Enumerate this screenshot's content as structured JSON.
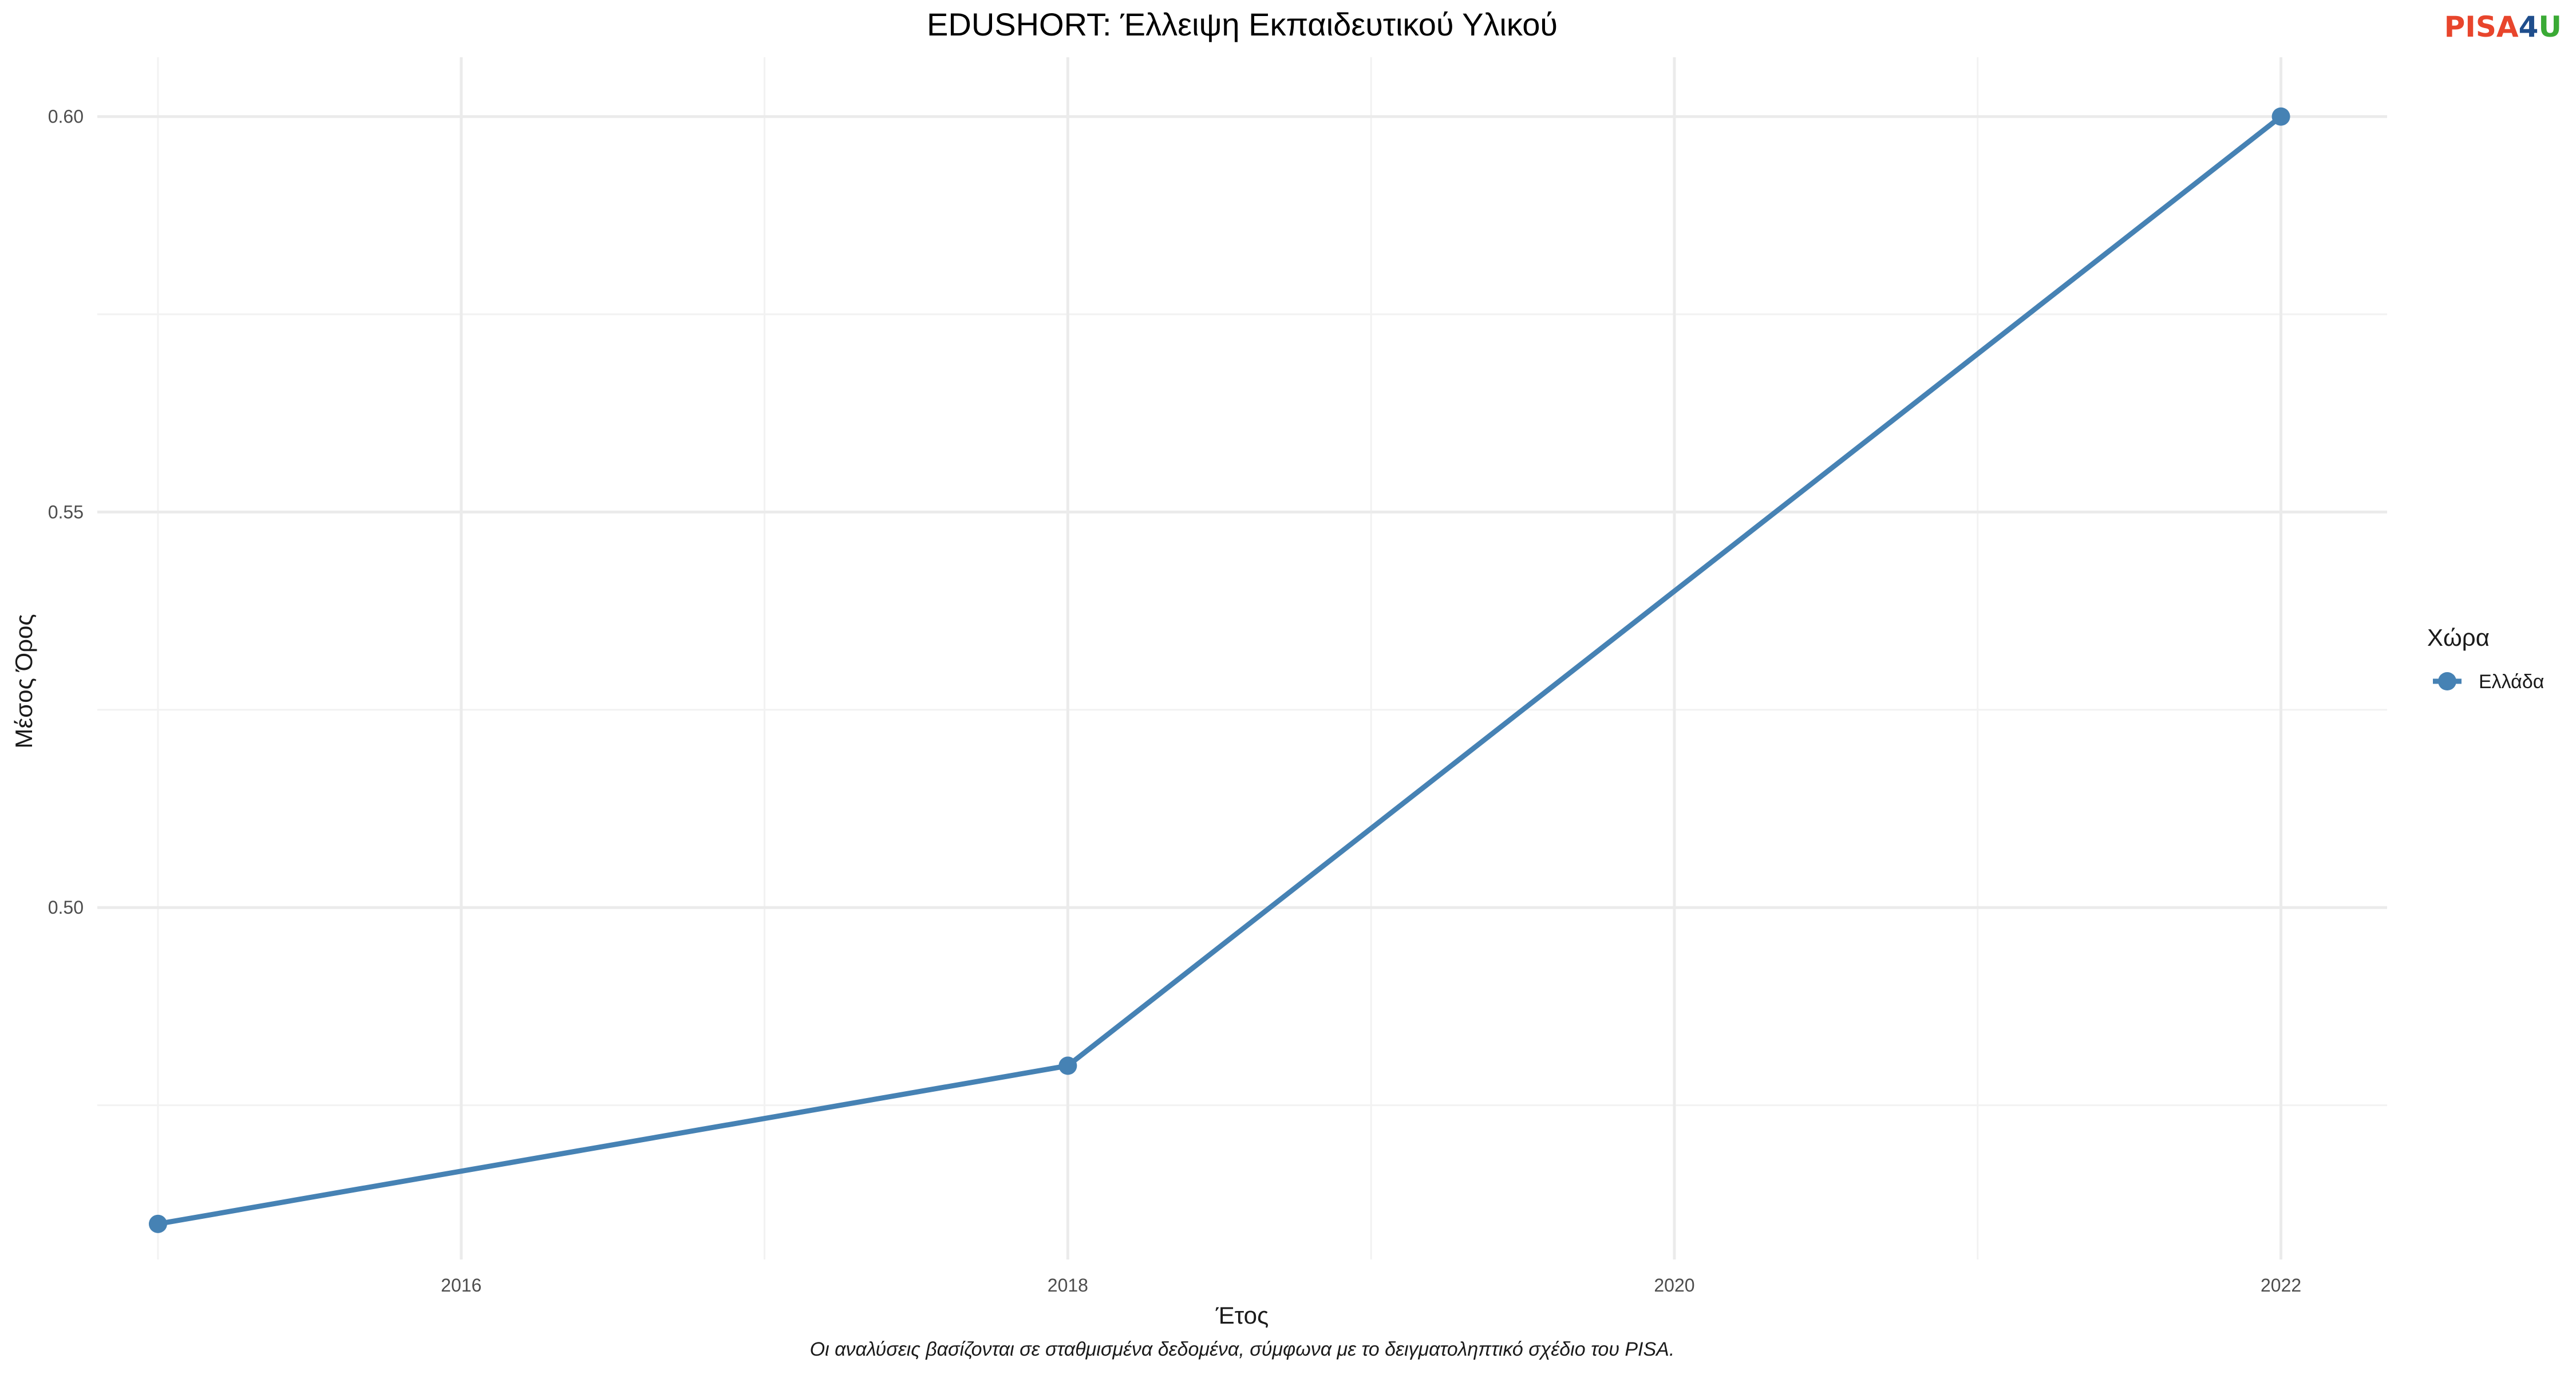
{
  "chart_data": {
    "type": "line",
    "title": "EDUSHORT: Έλλειψη Εκπαιδευτικού Υλικού",
    "xlabel": "Έτος",
    "ylabel": "Μέσος Όρος",
    "caption": "Οι αναλύσεις βασίζονται σε σταθμισμένα δεδομένα, σύμφωνα με το δειγματοληπτικό σχέδιο του PISA.",
    "xlim": [
      2014.8,
      2022.35
    ],
    "ylim": [
      0.4555,
      0.6075
    ],
    "x_ticks": [
      2016,
      2018,
      2020,
      2022
    ],
    "x_tick_labels": [
      "2016",
      "2018",
      "2020",
      "2022"
    ],
    "y_ticks": [
      0.5,
      0.55,
      0.6
    ],
    "y_tick_labels": [
      "0.50",
      "0.55",
      "0.60"
    ],
    "grid": true,
    "legend": {
      "title": "Χώρα",
      "placement": "right"
    },
    "series": [
      {
        "name": "Ελλάδα",
        "color": "#4682b4",
        "x": [
          2015,
          2018,
          2022
        ],
        "values": [
          0.46,
          0.48,
          0.6
        ]
      }
    ]
  },
  "logo": {
    "part1": "PISA",
    "part2": "4",
    "part3": "U",
    "colors": {
      "part1": "#e8452c",
      "part2": "#1f4e8c",
      "part3": "#3aaa35"
    }
  }
}
